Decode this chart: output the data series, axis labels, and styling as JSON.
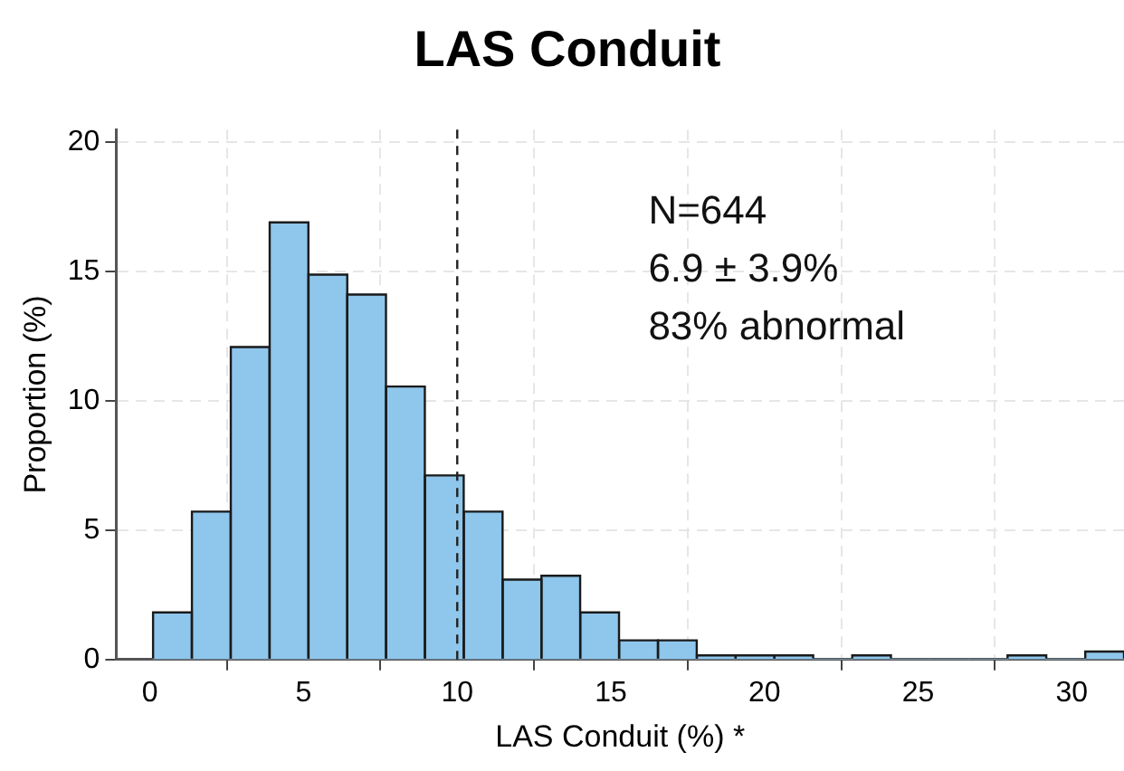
{
  "chart_data": {
    "type": "histogram",
    "title": "LAS Conduit",
    "xlabel": "LAS Conduit (%) *",
    "ylabel": "Proportion (%)",
    "bins": [
      0.1,
      1.36,
      2.63,
      3.89,
      5.16,
      6.42,
      7.68,
      8.95,
      10.21,
      11.48,
      12.74,
      14.0,
      15.27,
      16.53,
      17.8,
      19.06,
      20.32,
      21.59,
      22.85,
      24.12,
      25.38,
      26.64,
      27.91,
      29.17,
      30.44,
      31.7
    ],
    "values": [
      1.82,
      5.72,
      12.09,
      16.91,
      14.89,
      14.12,
      10.56,
      7.12,
      5.72,
      3.09,
      3.24,
      1.82,
      0.74,
      0.74,
      0.16,
      0.16,
      0.16,
      0,
      0.16,
      0,
      0,
      0,
      0.16,
      0,
      0.31
    ],
    "color": "#8ec6ec",
    "xlim": [
      -1.1,
      31.7
    ],
    "xticks": [
      0,
      5,
      10,
      15,
      20,
      25,
      30
    ],
    "ylim": [
      0,
      20.5
    ],
    "yticks": [
      0,
      5,
      10,
      15,
      20
    ],
    "grid": true,
    "ref_lines": [
      {
        "axis": "x",
        "value": 10,
        "line_style": "dashed",
        "color": "#222222"
      }
    ],
    "annotations": [
      "N=644",
      "6.9 ± 3.9%",
      "83% abnormal"
    ]
  }
}
